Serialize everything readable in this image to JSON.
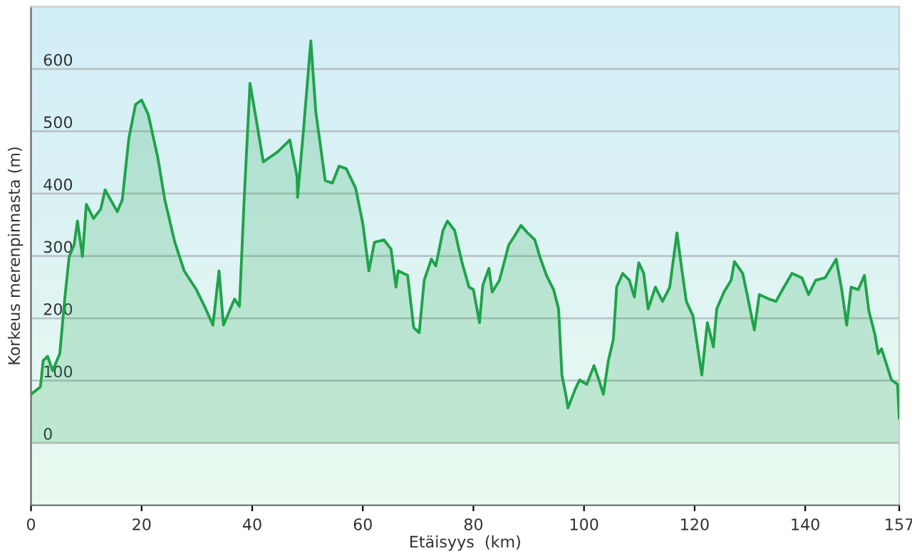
{
  "chart_data": {
    "type": "area",
    "xlabel": "Etäisyys  (km)",
    "ylabel": "Korkeus merenpinnasta (m)",
    "xlim": [
      0,
      157
    ],
    "ylim": [
      -100,
      700
    ],
    "xticks": [
      0,
      20,
      40,
      60,
      80,
      100,
      120,
      140,
      157
    ],
    "yticks": [
      0,
      100,
      200,
      300,
      400,
      500,
      600
    ],
    "grid": "y",
    "marker": "none",
    "line_style": "solid",
    "legend": false,
    "series": [
      {
        "color": "#1fa34a",
        "x": [
          0,
          1.7,
          2.2,
          3.0,
          3.9,
          5.2,
          6.1,
          6.9,
          7.8,
          8.4,
          9.3,
          10.0,
          11.3,
          12.6,
          13.4,
          15.6,
          16.5,
          17.7,
          18.9,
          20.0,
          21.2,
          22.9,
          24.2,
          26.0,
          27.7,
          29.9,
          31.6,
          32.9,
          34.0,
          34.8,
          36.8,
          37.7,
          38.5,
          39.6,
          40.7,
          42.0,
          44.6,
          46.8,
          48.1,
          48.2,
          49.3,
          50.6,
          51.5,
          53.2,
          54.5,
          55.7,
          57.0,
          58.7,
          60.0,
          61.1,
          62.1,
          63.8,
          65.1,
          66.0,
          66.4,
          68.1,
          69.2,
          70.2,
          71.1,
          72.4,
          73.2,
          74.5,
          75.3,
          76.6,
          77.9,
          79.2,
          80.0,
          81.1,
          81.7,
          82.8,
          83.4,
          84.7,
          86.4,
          87.3,
          88.6,
          89.8,
          91.1,
          92.0,
          93.2,
          94.5,
          95.4,
          96.0,
          96.7,
          97.1,
          98.4,
          99.2,
          100.5,
          101.8,
          102.7,
          103.5,
          104.4,
          105.3,
          105.9,
          107.0,
          108.2,
          109.1,
          109.9,
          110.8,
          111.6,
          112.9,
          114.2,
          115.5,
          116.8,
          117.6,
          118.5,
          119.7,
          121.3,
          122.3,
          123.4,
          124.0,
          125.3,
          126.6,
          127.2,
          128.7,
          129.5,
          130.8,
          131.7,
          133.4,
          134.7,
          135.9,
          137.6,
          139.4,
          140.6,
          141.9,
          143.6,
          145.6,
          146.6,
          147.5,
          148.3,
          149.6,
          150.7,
          151.5,
          152.6,
          153.2,
          153.8,
          155.6,
          156.7,
          157.0
        ],
        "values": [
          78,
          90,
          132,
          139,
          116,
          143,
          231,
          299,
          318,
          356,
          299,
          383,
          360,
          375,
          406,
          371,
          390,
          489,
          543,
          550,
          527,
          459,
          390,
          322,
          276,
          246,
          215,
          189,
          276,
          189,
          231,
          219,
          383,
          577,
          520,
          451,
          467,
          486,
          428,
          394,
          505,
          645,
          531,
          421,
          417,
          444,
          440,
          409,
          352,
          276,
          322,
          326,
          311,
          250,
          276,
          269,
          185,
          177,
          261,
          295,
          284,
          341,
          356,
          341,
          291,
          250,
          246,
          193,
          253,
          280,
          242,
          261,
          318,
          330,
          349,
          337,
          326,
          299,
          269,
          246,
          215,
          109,
          78,
          56,
          86,
          101,
          94,
          124,
          101,
          78,
          132,
          166,
          250,
          272,
          261,
          234,
          289,
          272,
          215,
          250,
          227,
          250,
          337,
          284,
          227,
          204,
          109,
          193,
          154,
          215,
          242,
          261,
          291,
          272,
          238,
          181,
          238,
          231,
          227,
          246,
          272,
          265,
          238,
          261,
          265,
          295,
          246,
          189,
          250,
          246,
          269,
          212,
          174,
          143,
          151,
          101,
          94,
          40
        ]
      }
    ]
  }
}
